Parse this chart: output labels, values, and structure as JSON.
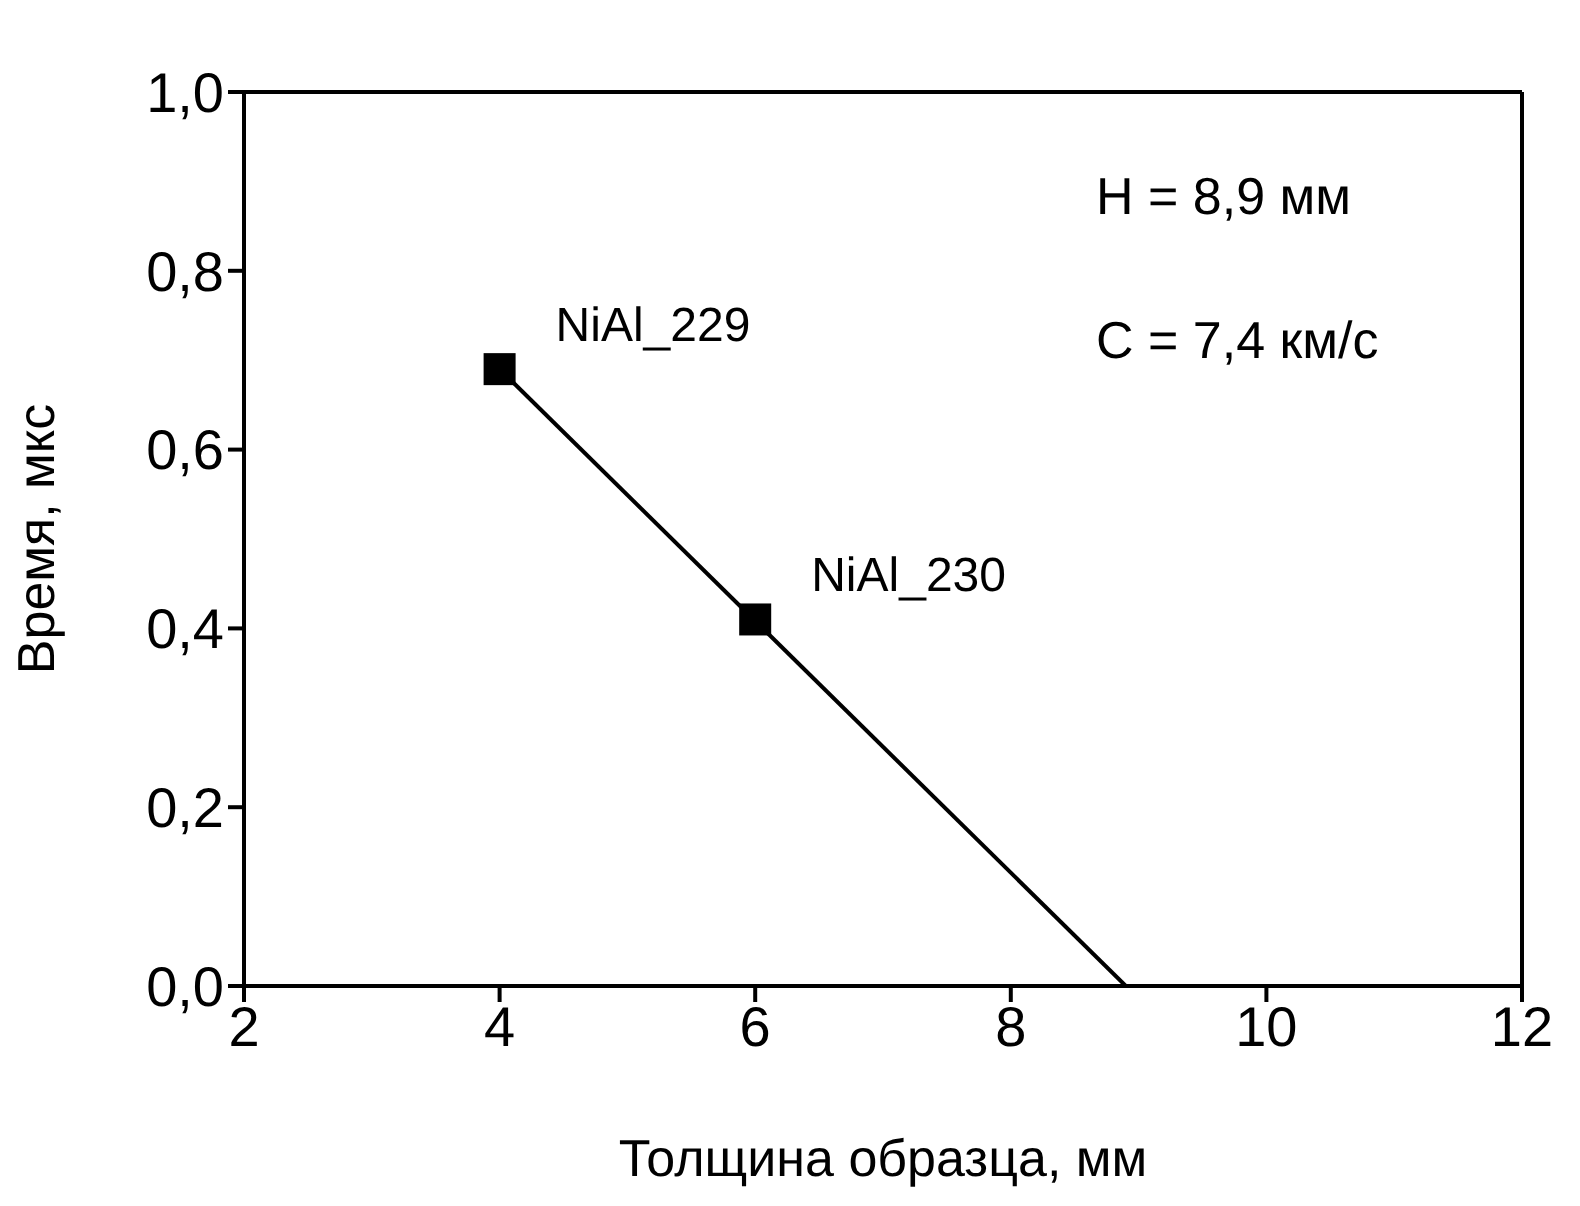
{
  "chart_data": {
    "type": "scatter",
    "xlabel": "Толщина образца, мм",
    "ylabel": "Время, мкс",
    "series": [
      {
        "x": [
          4,
          6
        ],
        "values": [
          0.69,
          0.41
        ],
        "color": "#000000"
      },
      {
        "type": "line",
        "x": [
          4,
          8.9
        ],
        "values": [
          0.69,
          0
        ],
        "color": "#000000",
        "marker": "none"
      }
    ],
    "xlim": [
      2,
      12
    ],
    "xticks": [
      2,
      4,
      6,
      8,
      10,
      12
    ],
    "ylim": [
      0,
      1
    ],
    "yticks": [
      {
        "value": 0,
        "label": "0,0"
      },
      {
        "value": 0.2,
        "label": "0,2"
      },
      {
        "value": 0.4,
        "label": "0,4"
      },
      {
        "value": 0.6,
        "label": "0,6"
      },
      {
        "value": 0.8,
        "label": "0,8"
      },
      {
        "value": 1,
        "label": "1,0"
      }
    ],
    "annotations": [
      {
        "text": "NiAl_229",
        "x": 4,
        "y": 0.69
      },
      {
        "text": "NiAl_230",
        "x": 6,
        "y": 0.41
      },
      "H = 8,9 мм",
      "C = 7,4 км/с"
    ],
    "marker": "square"
  }
}
